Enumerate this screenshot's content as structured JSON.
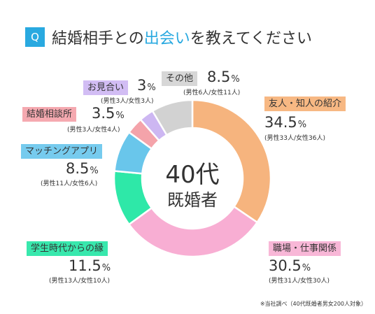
{
  "header": {
    "badge": "Q",
    "title_part1": "結婚相手との",
    "title_highlight": "出会い",
    "title_part2": "を教えてください"
  },
  "center": {
    "line1": "40代",
    "line2": "既婚者"
  },
  "note": "※当社調べ（40代既婚者男女200人対象）",
  "chart_data": {
    "type": "pie",
    "start": "12 o'clock, clockwise",
    "unit": "%",
    "slices": [
      {
        "name": "友人・知人の紹介",
        "value": 34.5,
        "detail": "(男性33人/女性36人)",
        "color": "#f6b47e",
        "tag_color": "#f7b883"
      },
      {
        "name": "職場・仕事関係",
        "value": 30.5,
        "detail": "(男性31人/女性30人)",
        "color": "#f8aed3",
        "tag_color": "#f8b7d7"
      },
      {
        "name": "学生時代からの縁",
        "value": 11.5,
        "detail": "(男性13人/女性10人)",
        "color": "#2ee8a8",
        "tag_color": "#38e8ad"
      },
      {
        "name": "マッチングアプリ",
        "value": 8.5,
        "detail": "(男性11人/女性6人)",
        "color": "#69c6eb",
        "tag_color": "#76cbee"
      },
      {
        "name": "結婚相談所",
        "value": 3.5,
        "detail": "(男性3人/女性4人)",
        "color": "#f4a3aa",
        "tag_color": "#f5a9b0"
      },
      {
        "name": "お見合い",
        "value": 3,
        "detail": "(男性3人/女性3人)",
        "color": "#cdb7f2",
        "tag_color": "#d2bdf4"
      },
      {
        "name": "その他",
        "value": 8.5,
        "detail": "(男性6人/女性11人)",
        "color": "#d2d2d2",
        "tag_color": "#d7d7d7"
      }
    ]
  }
}
